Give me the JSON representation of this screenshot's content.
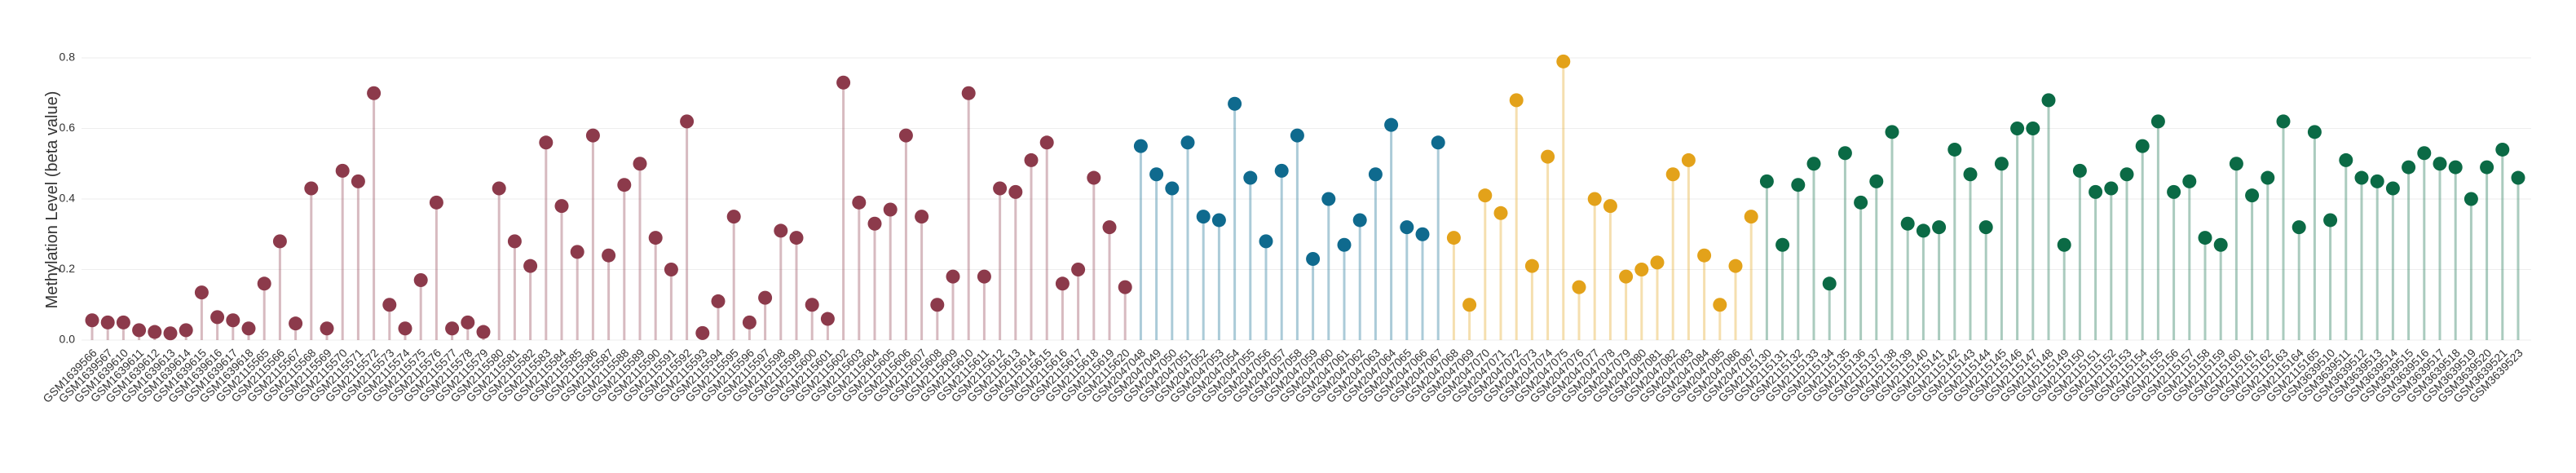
{
  "chart_data": {
    "type": "lollipop",
    "ylabel": "Methylation Level (beta value)",
    "ylim": [
      0,
      0.8
    ],
    "yticks": [
      {
        "value": 0,
        "label": "0.0"
      },
      0.2,
      0.4,
      0.6,
      0.8
    ],
    "grid": true,
    "series": [
      {
        "color": "#8c3a4b",
        "categories": [
          "GSM1639566",
          "GSM1639567",
          "GSM1639610",
          "GSM1639611",
          "GSM1639612",
          "GSM1639613",
          "GSM1639614",
          "GSM1639615",
          "GSM1639616",
          "GSM1639617",
          "GSM1639618",
          "GSM2115565",
          "GSM2115566",
          "GSM2115567",
          "GSM2115568",
          "GSM2115569",
          "GSM2115570",
          "GSM2115571",
          "GSM2115572",
          "GSM2115573",
          "GSM2115574",
          "GSM2115575",
          "GSM2115576",
          "GSM2115577",
          "GSM2115578",
          "GSM2115579",
          "GSM2115580",
          "GSM2115581",
          "GSM2115582",
          "GSM2115583",
          "GSM2115584",
          "GSM2115585",
          "GSM2115586",
          "GSM2115587",
          "GSM2115588",
          "GSM2115589",
          "GSM2115590",
          "GSM2115591",
          "GSM2115592",
          "GSM2115593",
          "GSM2115594",
          "GSM2115595",
          "GSM2115596",
          "GSM2115597",
          "GSM2115598",
          "GSM2115599",
          "GSM2115600",
          "GSM2115601",
          "GSM2115602",
          "GSM2115603",
          "GSM2115604",
          "GSM2115605",
          "GSM2115606",
          "GSM2115607",
          "GSM2115608",
          "GSM2115609",
          "GSM2115610",
          "GSM2115611",
          "GSM2115612",
          "GSM2115613",
          "GSM2115614",
          "GSM2115615",
          "GSM2115616",
          "GSM2115617",
          "GSM2115618",
          "GSM2115619",
          "GSM2115620"
        ],
        "values": [
          0.056,
          0.05,
          0.05,
          0.028,
          0.023,
          0.019,
          0.028,
          0.135,
          0.065,
          0.056,
          0.033,
          0.16,
          0.28,
          0.047,
          0.43,
          0.033,
          0.48,
          0.45,
          0.7,
          0.1,
          0.033,
          0.17,
          0.39,
          0.033,
          0.05,
          0.023,
          0.43,
          0.28,
          0.21,
          0.56,
          0.38,
          0.25,
          0.58,
          0.24,
          0.44,
          0.5,
          0.29,
          0.2,
          0.62,
          0.02,
          0.11,
          0.35,
          0.05,
          0.12,
          0.31,
          0.29,
          0.1,
          0.06,
          0.73,
          0.39,
          0.33,
          0.37,
          0.58,
          0.35,
          0.1,
          0.18,
          0.7,
          0.18,
          0.43,
          0.42,
          0.51,
          0.56,
          0.16,
          0.2,
          0.46,
          0.32,
          0.15
        ]
      },
      {
        "color": "#0f6a8e",
        "categories": [
          "GSM2047048",
          "GSM2047049",
          "GSM2047050",
          "GSM2047051",
          "GSM2047052",
          "GSM2047053",
          "GSM2047054",
          "GSM2047055",
          "GSM2047056",
          "GSM2047057",
          "GSM2047058",
          "GSM2047059",
          "GSM2047060",
          "GSM2047061",
          "GSM2047062",
          "GSM2047063",
          "GSM2047064",
          "GSM2047065",
          "GSM2047066",
          "GSM2047067"
        ],
        "values": [
          0.55,
          0.47,
          0.43,
          0.56,
          0.35,
          0.34,
          0.67,
          0.46,
          0.28,
          0.48,
          0.58,
          0.23,
          0.4,
          0.27,
          0.34,
          0.47,
          0.61,
          0.32,
          0.3,
          0.56
        ]
      },
      {
        "color": "#e3a21a",
        "categories": [
          "GSM2047068",
          "GSM2047069",
          "GSM2047070",
          "GSM2047071",
          "GSM2047072",
          "GSM2047073",
          "GSM2047074",
          "GSM2047075",
          "GSM2047076",
          "GSM2047077",
          "GSM2047078",
          "GSM2047079",
          "GSM2047080",
          "GSM2047081",
          "GSM2047082",
          "GSM2047083",
          "GSM2047084",
          "GSM2047085",
          "GSM2047086",
          "GSM2047087"
        ],
        "values": [
          0.29,
          0.1,
          0.41,
          0.36,
          0.68,
          0.21,
          0.52,
          0.79,
          0.15,
          0.4,
          0.38,
          0.18,
          0.2,
          0.22,
          0.47,
          0.51,
          0.24,
          0.1,
          0.21,
          0.35
        ]
      },
      {
        "color": "#0b6a45",
        "categories": [
          "GSM2115130",
          "GSM2115131",
          "GSM2115132",
          "GSM2115133",
          "GSM2115134",
          "GSM2115135",
          "GSM2115136",
          "GSM2115137",
          "GSM2115138",
          "GSM2115139",
          "GSM2115140",
          "GSM2115141",
          "GSM2115142",
          "GSM2115143",
          "GSM2115144",
          "GSM2115145",
          "GSM2115146",
          "GSM2115147",
          "GSM2115148",
          "GSM2115149",
          "GSM2115150",
          "GSM2115151",
          "GSM2115152",
          "GSM2115153",
          "GSM2115154",
          "GSM2115155",
          "GSM2115156",
          "GSM2115157",
          "GSM2115158",
          "GSM2115159",
          "GSM2115160",
          "GSM2115161",
          "GSM2115162",
          "GSM2115163",
          "GSM2115164",
          "GSM2115165",
          "GSM3639510",
          "GSM3639511",
          "GSM3639512",
          "GSM3639513",
          "GSM3639514",
          "GSM3639515",
          "GSM3639516",
          "GSM3639517",
          "GSM3639518",
          "GSM3639519",
          "GSM3639520",
          "GSM3639521",
          "GSM3639523"
        ],
        "values": [
          0.45,
          0.27,
          0.44,
          0.5,
          0.16,
          0.53,
          0.39,
          0.45,
          0.59,
          0.33,
          0.31,
          0.32,
          0.54,
          0.47,
          0.32,
          0.5,
          0.6,
          0.6,
          0.68,
          0.27,
          0.48,
          0.42,
          0.43,
          0.47,
          0.55,
          0.62,
          0.42,
          0.45,
          0.29,
          0.27,
          0.5,
          0.41,
          0.46,
          0.62,
          0.32,
          0.59,
          0.34,
          0.51,
          0.46,
          0.45,
          0.43,
          0.49,
          0.53,
          0.5,
          0.49,
          0.4,
          0.49,
          0.54,
          0.46
        ]
      }
    ]
  }
}
